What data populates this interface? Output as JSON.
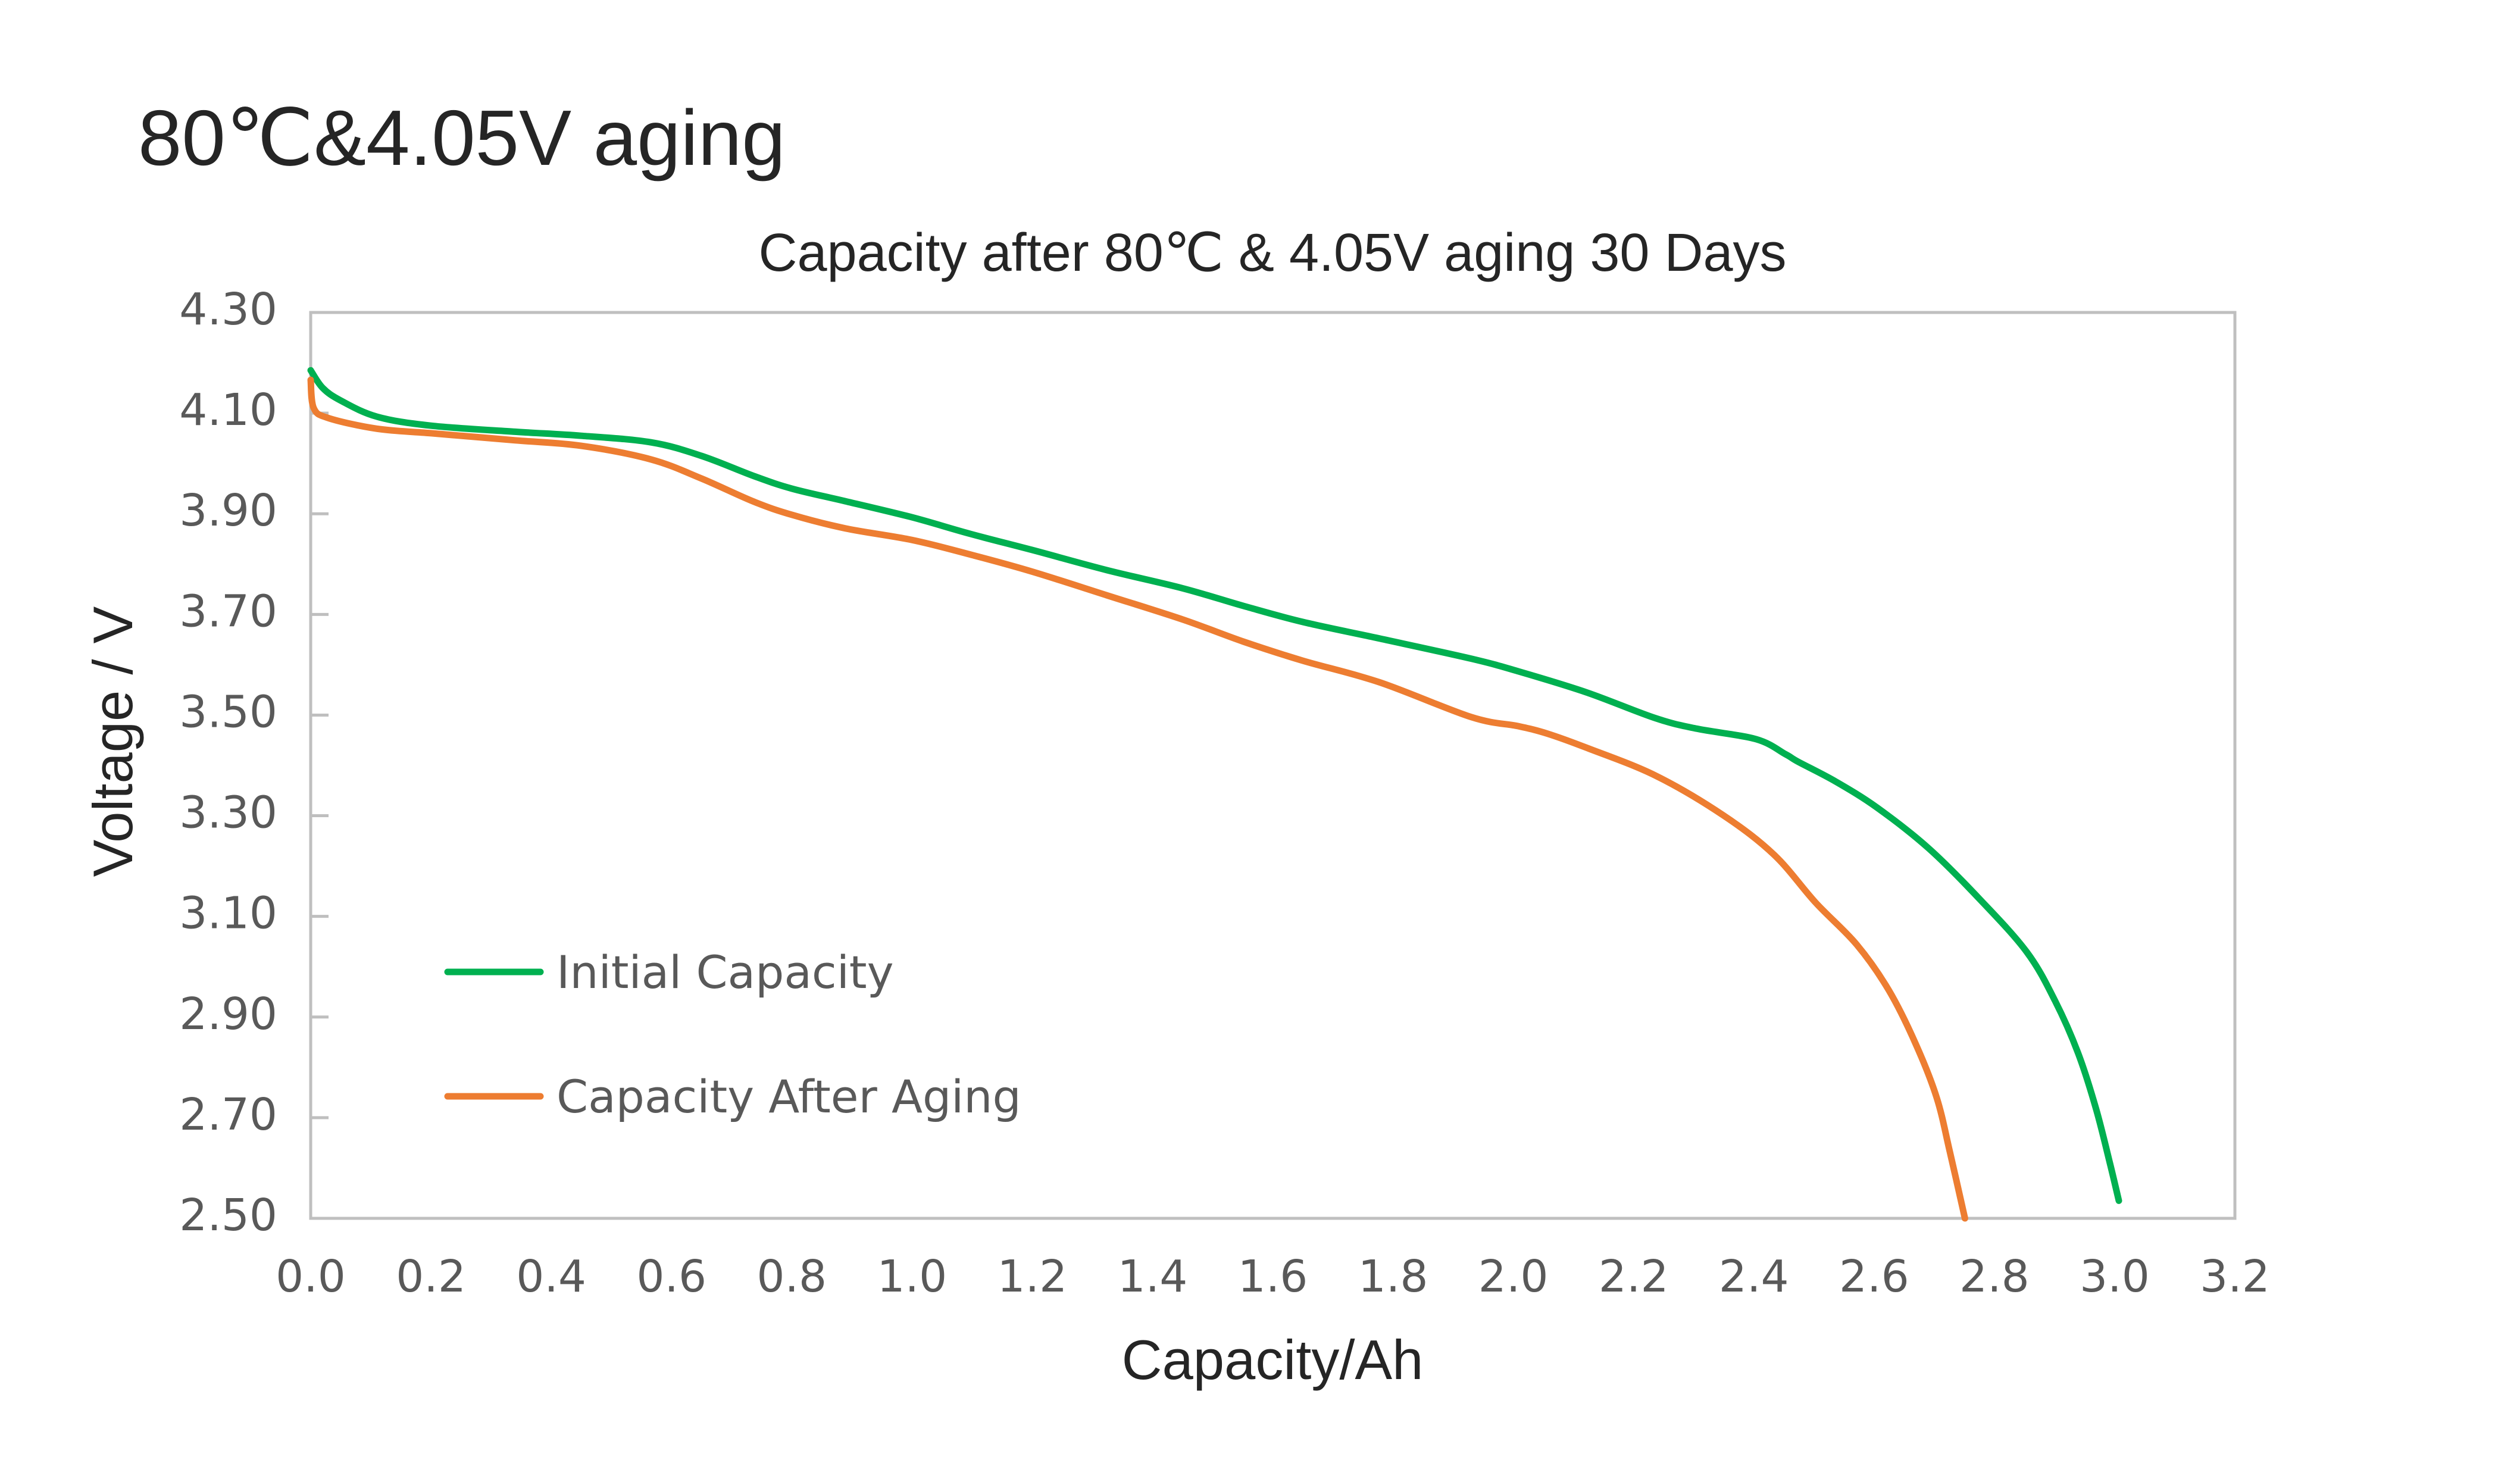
{
  "page_title": "80℃&4.05V aging",
  "chart_data": {
    "type": "line",
    "title": "Capacity after 80℃ & 4.05V aging  30 Days",
    "xlabel": "Capacity/Ah",
    "ylabel": "Voltage / V",
    "xlim": [
      0.0,
      3.2
    ],
    "ylim": [
      2.5,
      4.3
    ],
    "x_ticks": [
      0.0,
      0.2,
      0.4,
      0.6,
      0.8,
      1.0,
      1.2,
      1.4,
      1.6,
      1.8,
      2.0,
      2.2,
      2.4,
      2.6,
      2.8,
      3.0,
      3.2
    ],
    "x_tick_labels": [
      "0.0",
      "0.2",
      "0.4",
      "0.6",
      "0.8",
      "1.0",
      "1.2",
      "1.4",
      "1.6",
      "1.8",
      "2.0",
      "2.2",
      "2.4",
      "2.6",
      "2.8",
      "3.0",
      "3.2"
    ],
    "y_ticks": [
      4.3,
      4.1,
      3.9,
      3.7,
      3.5,
      3.3,
      3.1,
      2.9,
      2.7,
      2.5
    ],
    "y_tick_labels": [
      "4.30",
      "4.10",
      "3.90",
      "3.70",
      "3.50",
      "3.30",
      "3.10",
      "2.90",
      "2.70",
      "2.50"
    ],
    "grid": false,
    "legend_position": "lower-left",
    "series": [
      {
        "name": "Initial Capacity",
        "color": "#00b050",
        "points": [
          [
            0.0,
            4.185
          ],
          [
            0.02,
            4.15
          ],
          [
            0.05,
            4.125
          ],
          [
            0.11,
            4.093
          ],
          [
            0.2,
            4.075
          ],
          [
            0.34,
            4.063
          ],
          [
            0.45,
            4.055
          ],
          [
            0.566,
            4.042
          ],
          [
            0.65,
            4.015
          ],
          [
            0.737,
            3.975
          ],
          [
            0.8,
            3.95
          ],
          [
            0.889,
            3.925
          ],
          [
            1.0,
            3.893
          ],
          [
            1.097,
            3.86
          ],
          [
            1.2,
            3.828
          ],
          [
            1.324,
            3.788
          ],
          [
            1.45,
            3.752
          ],
          [
            1.551,
            3.717
          ],
          [
            1.65,
            3.685
          ],
          [
            1.778,
            3.652
          ],
          [
            1.93,
            3.612
          ],
          [
            2.008,
            3.587
          ],
          [
            2.122,
            3.545
          ],
          [
            2.236,
            3.494
          ],
          [
            2.305,
            3.473
          ],
          [
            2.404,
            3.452
          ],
          [
            2.453,
            3.422
          ],
          [
            2.474,
            3.407
          ],
          [
            2.536,
            3.368
          ],
          [
            2.605,
            3.316
          ],
          [
            2.69,
            3.236
          ],
          [
            2.775,
            3.135
          ],
          [
            2.854,
            3.029
          ],
          [
            2.901,
            2.932
          ],
          [
            2.939,
            2.829
          ],
          [
            2.969,
            2.718
          ],
          [
            2.992,
            2.61
          ],
          [
            3.007,
            2.535
          ]
        ]
      },
      {
        "name": "Capacity After Aging",
        "color": "#ed7d31",
        "points": [
          [
            0.0,
            4.166
          ],
          [
            0.005,
            4.11
          ],
          [
            0.03,
            4.09
          ],
          [
            0.11,
            4.069
          ],
          [
            0.2,
            4.06
          ],
          [
            0.34,
            4.046
          ],
          [
            0.45,
            4.035
          ],
          [
            0.566,
            4.008
          ],
          [
            0.65,
            3.97
          ],
          [
            0.737,
            3.924
          ],
          [
            0.8,
            3.898
          ],
          [
            0.889,
            3.871
          ],
          [
            1.0,
            3.848
          ],
          [
            1.097,
            3.819
          ],
          [
            1.2,
            3.785
          ],
          [
            1.324,
            3.738
          ],
          [
            1.45,
            3.69
          ],
          [
            1.551,
            3.646
          ],
          [
            1.65,
            3.608
          ],
          [
            1.778,
            3.565
          ],
          [
            1.93,
            3.496
          ],
          [
            2.008,
            3.478
          ],
          [
            2.057,
            3.463
          ],
          [
            2.122,
            3.435
          ],
          [
            2.236,
            3.38
          ],
          [
            2.349,
            3.301
          ],
          [
            2.434,
            3.222
          ],
          [
            2.503,
            3.127
          ],
          [
            2.571,
            3.044
          ],
          [
            2.624,
            2.954
          ],
          [
            2.669,
            2.847
          ],
          [
            2.704,
            2.74
          ],
          [
            2.726,
            2.632
          ],
          [
            2.751,
            2.5
          ]
        ]
      }
    ]
  }
}
